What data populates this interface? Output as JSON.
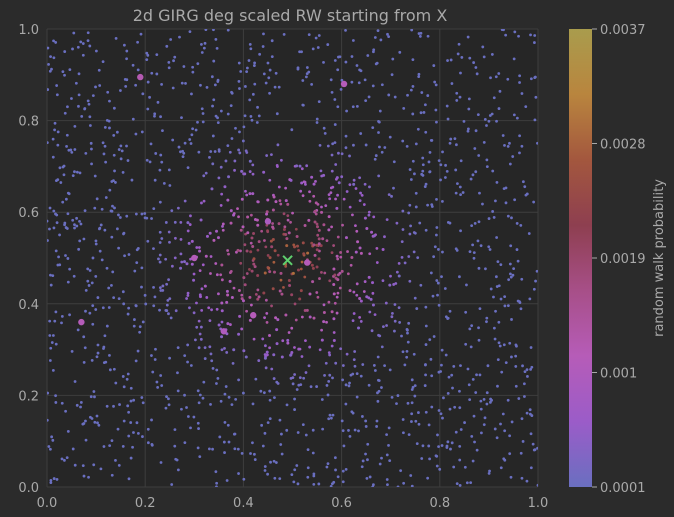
{
  "chart_data": {
    "type": "scatter",
    "title": "2d GIRG deg scaled RW starting from X",
    "xlim": [
      0,
      1
    ],
    "ylim": [
      0,
      1
    ],
    "x_ticks": [
      "0.0",
      "0.2",
      "0.4",
      "0.6",
      "0.8",
      "1.0"
    ],
    "y_ticks": [
      "0.0",
      "0.2",
      "0.4",
      "0.6",
      "0.8",
      "1.0"
    ],
    "grid": true,
    "start_marker": {
      "symbol": "X",
      "x": 0.49,
      "y": 0.495,
      "color": "#5fcf6e"
    },
    "colorbar": {
      "label": "random walk probability",
      "ticks": [
        "0.0037",
        "0.0028",
        "0.0019",
        "0.001",
        "0.0001"
      ],
      "min": 0.0001,
      "max": 0.0037,
      "colors": [
        "#6a6fc0",
        "#9b5cc8",
        "#b65cb8",
        "#a74f88",
        "#8e3f50",
        "#a3573e",
        "#b9853e",
        "#a99c4d"
      ]
    },
    "num_background_points": 1600,
    "highlighted_points": [
      {
        "x": 0.19,
        "y": 0.895,
        "p": 0.0012
      },
      {
        "x": 0.605,
        "y": 0.88,
        "p": 0.0011
      },
      {
        "x": 0.07,
        "y": 0.36,
        "p": 0.0011
      },
      {
        "x": 0.3,
        "y": 0.5,
        "p": 0.0011
      },
      {
        "x": 0.53,
        "y": 0.49,
        "p": 0.0011
      },
      {
        "x": 0.36,
        "y": 0.34,
        "p": 0.001
      },
      {
        "x": 0.42,
        "y": 0.375,
        "p": 0.0011
      },
      {
        "x": 0.45,
        "y": 0.58,
        "p": 0.0009
      }
    ]
  }
}
